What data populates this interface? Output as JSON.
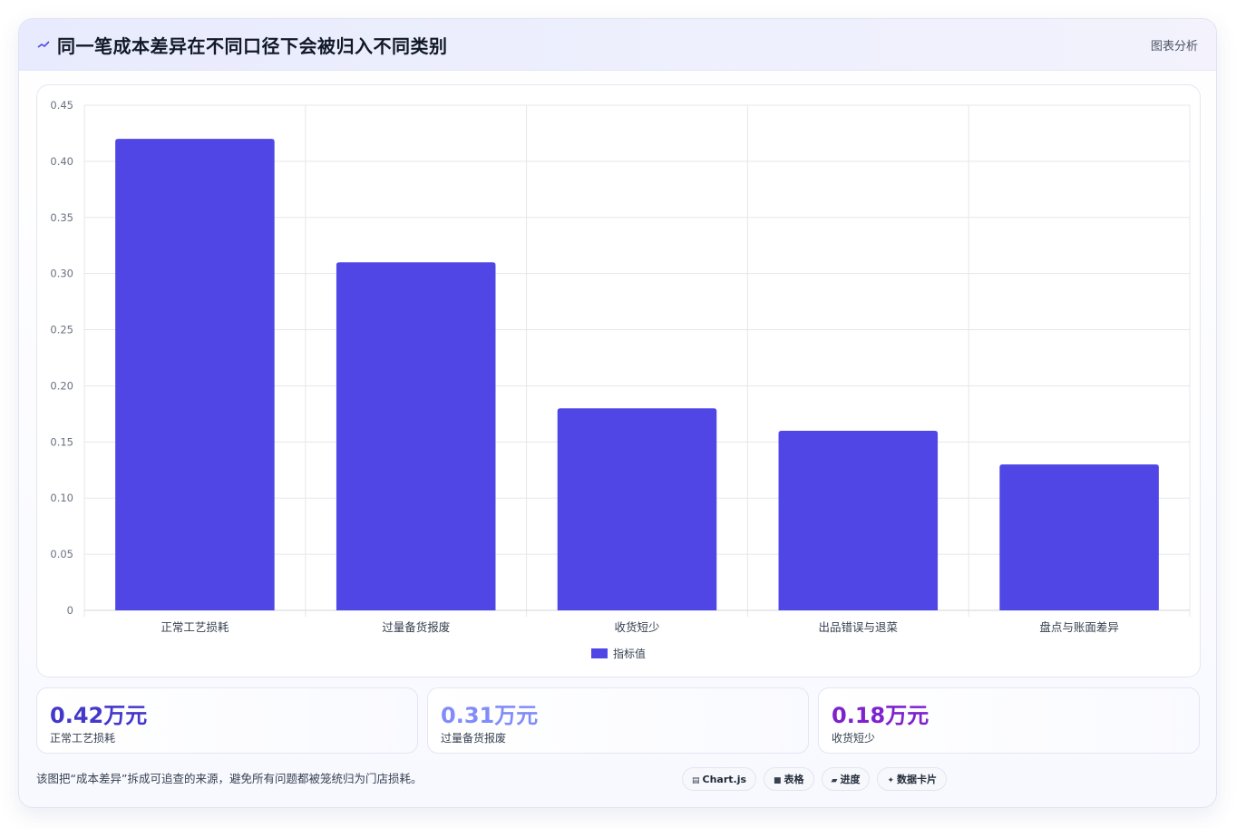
{
  "header": {
    "icon": "trend-line-icon",
    "title": "同一笔成本差异在不同口径下会被归入不同类别",
    "tag": "图表分析"
  },
  "chart_data": {
    "type": "bar",
    "categories": [
      "正常工艺损耗",
      "过量备货报废",
      "收货短少",
      "出品错误与退菜",
      "盘点与账面差异"
    ],
    "series": [
      {
        "name": "指标值",
        "values": [
          0.42,
          0.31,
          0.18,
          0.16,
          0.13
        ],
        "color": "#4f46e5"
      }
    ],
    "ylim": [
      0,
      0.45
    ],
    "yticks": [
      "0",
      "0.05",
      "0.10",
      "0.15",
      "0.20",
      "0.25",
      "0.30",
      "0.35",
      "0.40",
      "0.45"
    ],
    "grid": true,
    "legend": "bottom"
  },
  "kpis": [
    {
      "value": "0.42万元",
      "label": "正常工艺损耗",
      "color": "#4338ca"
    },
    {
      "value": "0.31万元",
      "label": "过量备货报废",
      "color": "#818cf8"
    },
    {
      "value": "0.18万元",
      "label": "收货短少",
      "color": "#7e22ce"
    }
  ],
  "note": "该图把“成本差异”拆成可追查的来源，避免所有问题都被笼统归为门店损耗。",
  "chips": [
    {
      "icon": "chart-icon",
      "glyph": "▤",
      "label": "Chart.js"
    },
    {
      "icon": "table-icon",
      "glyph": "■",
      "label": "表格"
    },
    {
      "icon": "progress-icon",
      "glyph": "▰",
      "label": "进度"
    },
    {
      "icon": "card-icon",
      "glyph": "✦",
      "label": "数据卡片"
    }
  ]
}
